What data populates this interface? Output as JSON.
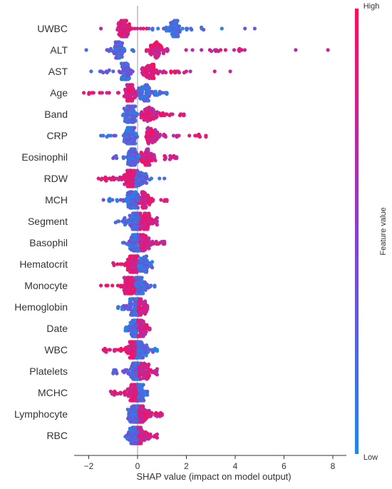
{
  "chart_data": {
    "type": "scatter",
    "subtype": "shap-beeswarm-summary",
    "xlabel": "SHAP value (impact on model output)",
    "xlim": [
      -2.6,
      8.2
    ],
    "x_ticks": [
      -2,
      0,
      2,
      4,
      6,
      8
    ],
    "x_tick_labels": [
      "−2",
      "0",
      "2",
      "4",
      "6",
      "8"
    ],
    "zero_line": true,
    "grid": false,
    "colorbar": {
      "title": "Feature value",
      "high_label": "High",
      "low_label": "Low",
      "high_color": "#ff0d57",
      "low_color": "#1e88e5",
      "placement": "right"
    },
    "features": [
      {
        "name": "UWBC",
        "min": -1.5,
        "max": 4.8,
        "peak_low": -0.6,
        "peak_high": 1.5,
        "main_low": -0.8,
        "main_high": 3.8
      },
      {
        "name": "ALT",
        "min": -2.1,
        "max": 7.8,
        "peak_low": -0.8,
        "peak_high": 0.8,
        "main_low": -1.3,
        "main_high": 4.5
      },
      {
        "name": "AST",
        "min": -1.9,
        "max": 3.8,
        "peak_low": -0.5,
        "peak_high": 0.5,
        "main_low": -1.6,
        "main_high": 2.2
      },
      {
        "name": "Age",
        "min": -2.2,
        "max": 1.2,
        "peak_low": -0.3,
        "peak_high": 0.3,
        "main_low": -2.0,
        "main_high": 1.2
      },
      {
        "name": "Band",
        "min": -0.6,
        "max": 1.9,
        "peak_low": -0.3,
        "peak_high": 0.5,
        "main_low": -0.6,
        "main_high": 1.9
      },
      {
        "name": "CRP",
        "min": -1.5,
        "max": 2.8,
        "peak_low": -0.3,
        "peak_high": 0.6,
        "main_low": -1.5,
        "main_high": 2.8
      },
      {
        "name": "Eosinophil",
        "min": -1.0,
        "max": 1.6,
        "peak_low": -0.2,
        "peak_high": 0.4,
        "main_low": -1.0,
        "main_high": 1.6
      },
      {
        "name": "RDW",
        "min": -1.6,
        "max": 1.1,
        "peak_low": -0.3,
        "peak_high": 0.1,
        "main_low": -1.6,
        "main_high": 0.6
      },
      {
        "name": "MCH",
        "min": -1.4,
        "max": 1.2,
        "peak_low": -0.2,
        "peak_high": 0.3,
        "main_low": -1.2,
        "main_high": 1.2
      },
      {
        "name": "Segment",
        "min": -0.9,
        "max": 0.8,
        "peak_low": -0.1,
        "peak_high": 0.3,
        "main_low": -0.9,
        "main_high": 0.8
      },
      {
        "name": "Basophil",
        "min": -0.6,
        "max": 1.1,
        "peak_low": -0.1,
        "peak_high": 0.3,
        "main_low": -0.6,
        "main_high": 1.1
      },
      {
        "name": "Hematocrit",
        "min": -1.0,
        "max": 0.6,
        "peak_low": -0.2,
        "peak_high": 0.2,
        "main_low": -1.0,
        "main_high": 0.6
      },
      {
        "name": "Monocyte",
        "min": -1.5,
        "max": 0.7,
        "peak_low": -0.3,
        "peak_high": 0.1,
        "main_low": -1.3,
        "main_high": 0.7
      },
      {
        "name": "Hemoglobin",
        "min": -0.8,
        "max": 0.4,
        "peak_low": -0.1,
        "peak_high": 0.1,
        "main_low": -0.8,
        "main_high": 0.4
      },
      {
        "name": "Date",
        "min": -0.5,
        "max": 0.5,
        "peak_low": -0.1,
        "peak_high": 0.1,
        "main_low": -0.5,
        "main_high": 0.5
      },
      {
        "name": "WBC",
        "min": -1.4,
        "max": 0.8,
        "peak_low": -0.2,
        "peak_high": 0.1,
        "main_low": -1.4,
        "main_high": 0.8
      },
      {
        "name": "Platelets",
        "min": -1.0,
        "max": 0.8,
        "peak_low": -0.1,
        "peak_high": 0.2,
        "main_low": -1.0,
        "main_high": 0.8
      },
      {
        "name": "MCHC",
        "min": -1.1,
        "max": 0.4,
        "peak_low": -0.1,
        "peak_high": 0.1,
        "main_low": -1.1,
        "main_high": 0.4
      },
      {
        "name": "Lymphocyte",
        "min": -0.4,
        "max": 1.0,
        "peak_low": -0.1,
        "peak_high": 0.2,
        "main_low": -0.4,
        "main_high": 1.0
      },
      {
        "name": "RBC",
        "min": -0.5,
        "max": 0.8,
        "peak_low": -0.1,
        "peak_high": 0.1,
        "main_low": -0.5,
        "main_high": 0.8
      }
    ]
  }
}
